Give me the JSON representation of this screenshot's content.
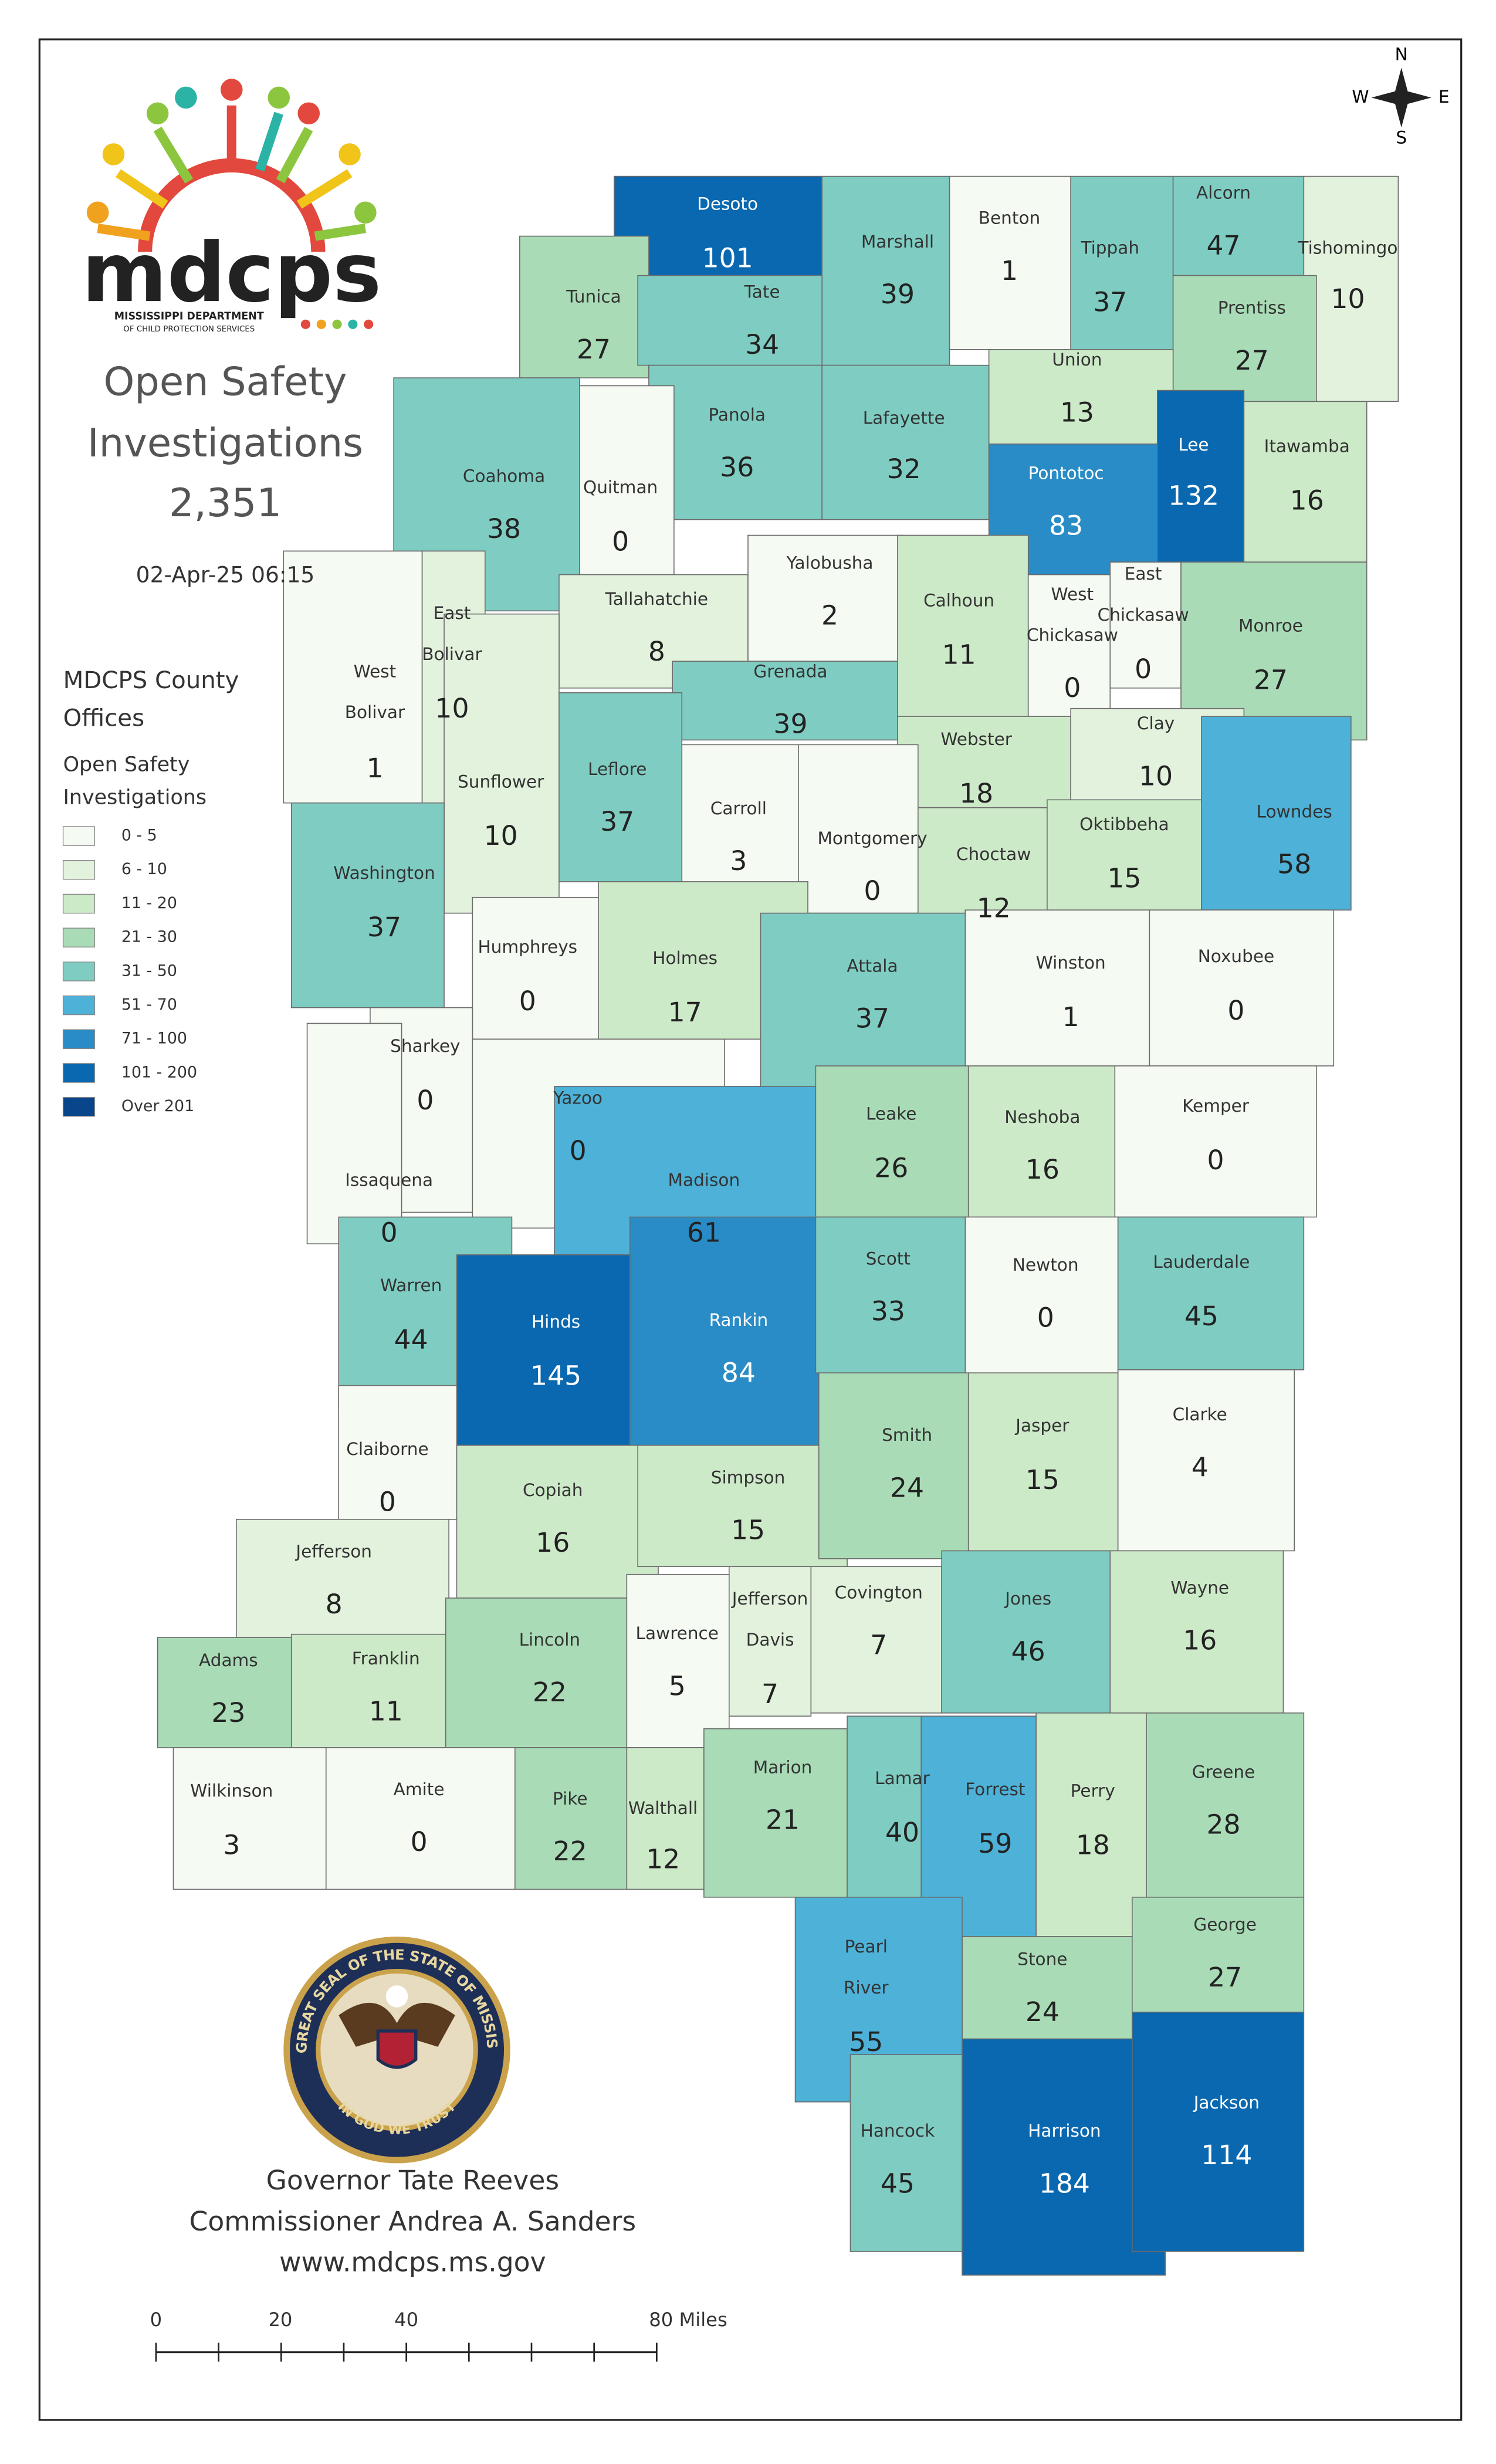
{
  "header": {
    "title_lines": [
      "Open Safety",
      "Investigations"
    ],
    "total": "2,351",
    "timestamp": "02-Apr-25 06:15"
  },
  "logo": {
    "wordmark": "mdcps",
    "line1": "MISSISSIPPI DEPARTMENT",
    "line2": "OF CHILD PROTECTION SERVICES"
  },
  "compass": {
    "n": "N",
    "s": "S",
    "e": "E",
    "w": "W"
  },
  "legend": {
    "heading": [
      "MDCPS County",
      "Offices"
    ],
    "title": [
      "Open Safety",
      "Investigations"
    ],
    "items": [
      {
        "label": "0 - 5",
        "color": "#f5faf2"
      },
      {
        "label": "6 - 10",
        "color": "#e2f2dd"
      },
      {
        "label": "11 - 20",
        "color": "#cdeac8"
      },
      {
        "label": "21 - 30",
        "color": "#a9dcb6"
      },
      {
        "label": "31 - 50",
        "color": "#7fcdc2"
      },
      {
        "label": "51 - 70",
        "color": "#4db1d8"
      },
      {
        "label": "71 - 100",
        "color": "#2a8cc6"
      },
      {
        "label": "101 - 200",
        "color": "#0a68b0"
      },
      {
        "label": "Over 201",
        "color": "#08458a"
      }
    ]
  },
  "counties": [
    {
      "name": "Desoto",
      "value": 101
    },
    {
      "name": "Tunica",
      "value": 27
    },
    {
      "name": "Marshall",
      "value": 39
    },
    {
      "name": "Benton",
      "value": 1
    },
    {
      "name": "Tippah",
      "value": 37
    },
    {
      "name": "Alcorn",
      "value": 47
    },
    {
      "name": "Tishomingo",
      "value": 10
    },
    {
      "name": "Tate",
      "value": 34
    },
    {
      "name": "Prentiss",
      "value": 27
    },
    {
      "name": "Union",
      "value": 13
    },
    {
      "name": "Lee",
      "value": 132
    },
    {
      "name": "Itawamba",
      "value": 16
    },
    {
      "name": "Panola",
      "value": 36
    },
    {
      "name": "Lafayette",
      "value": 32
    },
    {
      "name": "Pontotoc",
      "value": 83
    },
    {
      "name": "Coahoma",
      "value": 38
    },
    {
      "name": "Quitman",
      "value": 0
    },
    {
      "name": "Tallahatchie",
      "value": 8
    },
    {
      "name": "Yalobusha",
      "value": 2
    },
    {
      "name": "Calhoun",
      "value": 11
    },
    {
      "name": [
        "West",
        "Chickasaw"
      ],
      "value": 0
    },
    {
      "name": [
        "East",
        "Chickasaw"
      ],
      "value": 0
    },
    {
      "name": "Monroe",
      "value": 27
    },
    {
      "name": [
        "East",
        "Bolivar"
      ],
      "value": 10
    },
    {
      "name": [
        "West",
        "Bolivar"
      ],
      "value": 1
    },
    {
      "name": "Sunflower",
      "value": 10
    },
    {
      "name": "Grenada",
      "value": 39
    },
    {
      "name": "Webster",
      "value": 18
    },
    {
      "name": "Clay",
      "value": 10
    },
    {
      "name": "Leflore",
      "value": 37
    },
    {
      "name": "Carroll",
      "value": 3
    },
    {
      "name": "Montgomery",
      "value": 0
    },
    {
      "name": "Choctaw",
      "value": 12
    },
    {
      "name": "Oktibbeha",
      "value": 15
    },
    {
      "name": "Lowndes",
      "value": 58
    },
    {
      "name": "Washington",
      "value": 37
    },
    {
      "name": "Humphreys",
      "value": 0
    },
    {
      "name": "Holmes",
      "value": 17
    },
    {
      "name": "Attala",
      "value": 37
    },
    {
      "name": "Winston",
      "value": 1
    },
    {
      "name": "Noxubee",
      "value": 0
    },
    {
      "name": "Sharkey",
      "value": 0
    },
    {
      "name": "Yazoo",
      "value": 0
    },
    {
      "name": "Issaquena",
      "value": 0
    },
    {
      "name": "Madison",
      "value": 61
    },
    {
      "name": "Leake",
      "value": 26
    },
    {
      "name": "Neshoba",
      "value": 16
    },
    {
      "name": "Kemper",
      "value": 0
    },
    {
      "name": "Warren",
      "value": 44
    },
    {
      "name": "Hinds",
      "value": 145
    },
    {
      "name": "Rankin",
      "value": 84
    },
    {
      "name": "Scott",
      "value": 33
    },
    {
      "name": "Newton",
      "value": 0
    },
    {
      "name": "Lauderdale",
      "value": 45
    },
    {
      "name": "Claiborne",
      "value": 0
    },
    {
      "name": "Copiah",
      "value": 16
    },
    {
      "name": "Simpson",
      "value": 15
    },
    {
      "name": "Smith",
      "value": 24
    },
    {
      "name": "Jasper",
      "value": 15
    },
    {
      "name": "Clarke",
      "value": 4
    },
    {
      "name": "Jefferson",
      "value": 8
    },
    {
      "name": "Adams",
      "value": 23
    },
    {
      "name": "Franklin",
      "value": 11
    },
    {
      "name": "Lincoln",
      "value": 22
    },
    {
      "name": "Lawrence",
      "value": 5
    },
    {
      "name": [
        "Jefferson",
        "Davis"
      ],
      "value": 7
    },
    {
      "name": "Covington",
      "value": 7
    },
    {
      "name": "Jones",
      "value": 46
    },
    {
      "name": "Wayne",
      "value": 16
    },
    {
      "name": "Wilkinson",
      "value": 3
    },
    {
      "name": "Amite",
      "value": 0
    },
    {
      "name": "Pike",
      "value": 22
    },
    {
      "name": "Walthall",
      "value": 12
    },
    {
      "name": "Marion",
      "value": 21
    },
    {
      "name": "Lamar",
      "value": 40
    },
    {
      "name": "Forrest",
      "value": 59
    },
    {
      "name": "Perry",
      "value": 18
    },
    {
      "name": "Greene",
      "value": 28
    },
    {
      "name": "Stone",
      "value": 24
    },
    {
      "name": "George",
      "value": 27
    },
    {
      "name": [
        "Pearl",
        "River"
      ],
      "value": 55
    },
    {
      "name": "Hancock",
      "value": 45
    },
    {
      "name": "Harrison",
      "value": 184
    },
    {
      "name": "Jackson",
      "value": 114
    }
  ],
  "seal": {
    "outer": "THE GREAT SEAL OF THE STATE OF MISSISSIPPI",
    "motto": "IN GOD WE TRUST"
  },
  "footer": [
    "Governor Tate Reeves",
    "Commissioner Andrea A. Sanders",
    "www.mdcps.ms.gov"
  ],
  "scale_bar": [
    "0",
    "20",
    "40",
    "80 Miles"
  ]
}
